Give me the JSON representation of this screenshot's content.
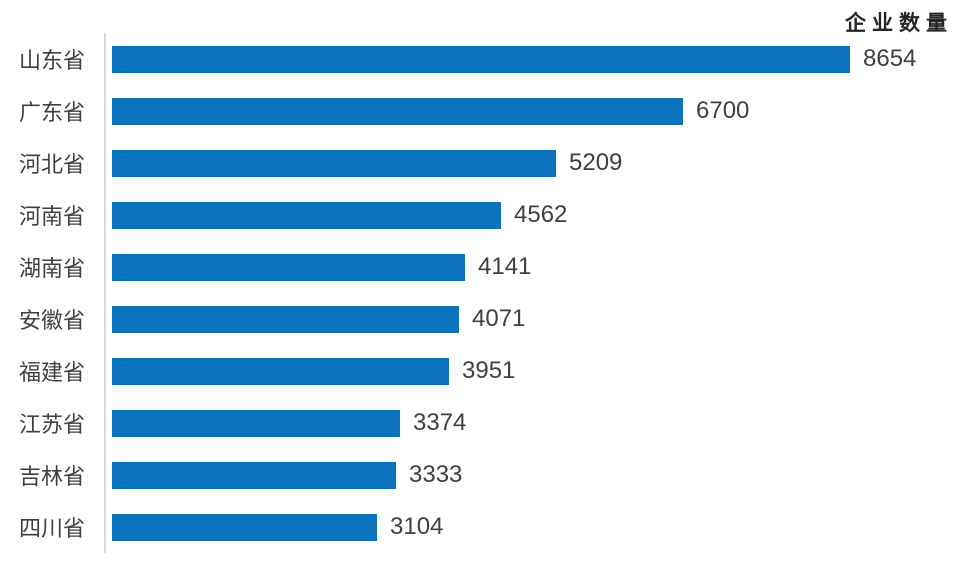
{
  "chart": {
    "title": "企业数量"
  },
  "chart_data": {
    "type": "bar",
    "orientation": "horizontal",
    "title": "企业数量",
    "categories": [
      "山东省",
      "广东省",
      "河北省",
      "河南省",
      "湖南省",
      "安徽省",
      "福建省",
      "江苏省",
      "吉林省",
      "四川省"
    ],
    "values": [
      8654,
      6700,
      5209,
      4562,
      4141,
      4071,
      3951,
      3374,
      3333,
      3104
    ],
    "xlim": [
      0,
      8654
    ],
    "value_labels": true,
    "grid": false,
    "legend": false,
    "axis_line": "vertical-left",
    "bar_color": "#0b72be"
  },
  "colors": {
    "bar": "#0b72be",
    "axis_line": "#d9d9d9",
    "value_label": "#404040",
    "category_label": "#3f3f3f",
    "title": "#262626",
    "background": "#ffffff"
  }
}
